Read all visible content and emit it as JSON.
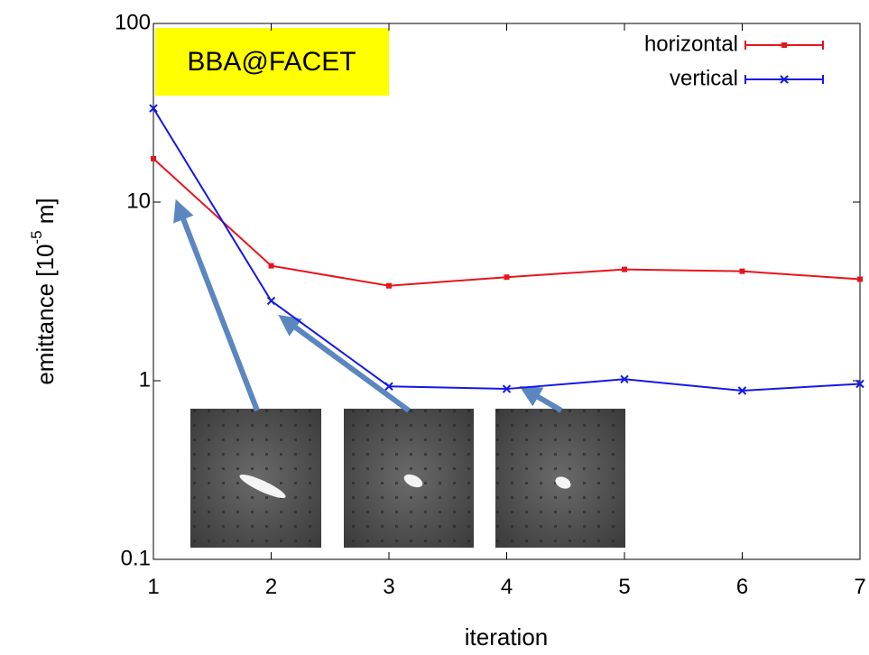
{
  "chart_data": {
    "type": "line",
    "annotation": "BBA@FACET",
    "xlabel": "iteration",
    "ylabel": [
      "emittance [10",
      "-5",
      " m]"
    ],
    "x": [
      1,
      2,
      3,
      4,
      5,
      6,
      7
    ],
    "series": [
      {
        "name": "horizontal",
        "color": "#e8141c",
        "marker": "square",
        "values": [
          17.5,
          4.4,
          3.4,
          3.8,
          4.2,
          4.1,
          3.7
        ]
      },
      {
        "name": "vertical",
        "color": "#1418e8",
        "marker": "cross",
        "values": [
          33.5,
          2.8,
          0.93,
          0.9,
          1.02,
          0.88,
          0.96
        ]
      }
    ],
    "xlim": [
      1,
      7
    ],
    "xticks": [
      1,
      2,
      3,
      4,
      5,
      6,
      7
    ],
    "ylim": [
      0.1,
      100
    ],
    "yticks": [
      0.1,
      1,
      10,
      100
    ],
    "log_y": true,
    "legend": "top-right"
  }
}
